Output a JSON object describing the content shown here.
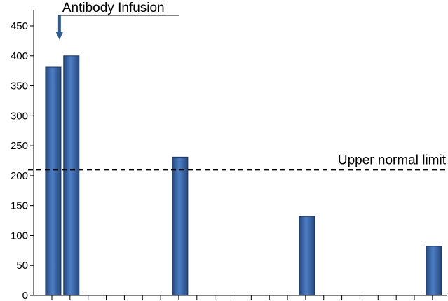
{
  "chart_data": {
    "type": "bar",
    "title": "",
    "xlabel": "",
    "ylabel": "",
    "ylim": [
      0,
      450
    ],
    "yticks": [
      0,
      50,
      100,
      150,
      200,
      250,
      300,
      350,
      400,
      450
    ],
    "slot_count": 22,
    "bars": [
      {
        "slot": 0,
        "value": 381
      },
      {
        "slot": 1,
        "value": 400
      },
      {
        "slot": 7,
        "value": 231
      },
      {
        "slot": 14,
        "value": 132
      },
      {
        "slot": 21,
        "value": 82
      }
    ],
    "bar_color": "#3A66A7",
    "reference_line": {
      "label": "Upper normal limit",
      "value": 210,
      "style": "dashed"
    },
    "annotation": {
      "label": "Antibody Infusion",
      "slot": 1
    }
  }
}
